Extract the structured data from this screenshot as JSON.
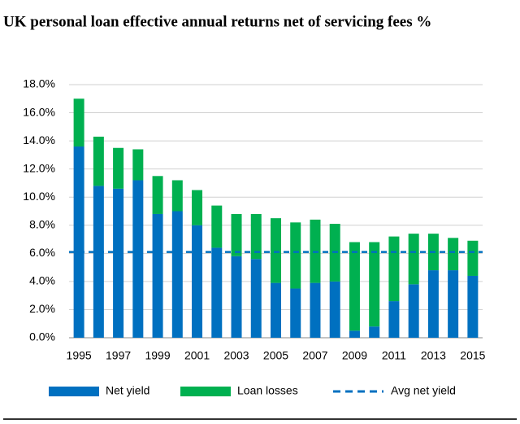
{
  "chart_data": {
    "type": "stacked_bar",
    "title": "UK personal loan effective annual returns net of servicing fees %",
    "categories": [
      "1995",
      null,
      "1997",
      null,
      "1999",
      null,
      "2001",
      null,
      "2003",
      null,
      "2005",
      null,
      "2007",
      null,
      "2009",
      null,
      "2011",
      null,
      "2013",
      null,
      "2015"
    ],
    "series": [
      {
        "name": "Net yield",
        "color": "#0070c0",
        "values": [
          13.6,
          10.8,
          10.6,
          11.2,
          8.8,
          9.0,
          8.0,
          6.4,
          5.8,
          5.6,
          3.9,
          3.5,
          3.9,
          4.0,
          0.5,
          0.8,
          2.6,
          3.8,
          4.8,
          4.8,
          4.4
        ]
      },
      {
        "name": "Loan losses",
        "color": "#00b050",
        "values": [
          3.4,
          3.5,
          2.9,
          2.2,
          2.7,
          2.2,
          2.5,
          3.0,
          3.0,
          3.2,
          4.6,
          4.7,
          4.5,
          4.1,
          6.3,
          6.0,
          4.6,
          3.6,
          2.6,
          2.3,
          2.5
        ]
      }
    ],
    "avg_line": {
      "name": "Avg net yield",
      "color": "#0070c0",
      "value": 6.1
    },
    "ylim": [
      0,
      18
    ],
    "yticks": [
      {
        "value": 0,
        "label": "0.0%"
      },
      {
        "value": 2,
        "label": "2.0%"
      },
      {
        "value": 4,
        "label": "4.0%"
      },
      {
        "value": 6,
        "label": "6.0%"
      },
      {
        "value": 8,
        "label": "8.0%"
      },
      {
        "value": 10,
        "label": "10.0%"
      },
      {
        "value": 12,
        "label": "12.0%"
      },
      {
        "value": 14,
        "label": "14.0%"
      },
      {
        "value": 16,
        "label": "16.0%"
      },
      {
        "value": 18,
        "label": "18.0%"
      }
    ],
    "grid": true
  }
}
